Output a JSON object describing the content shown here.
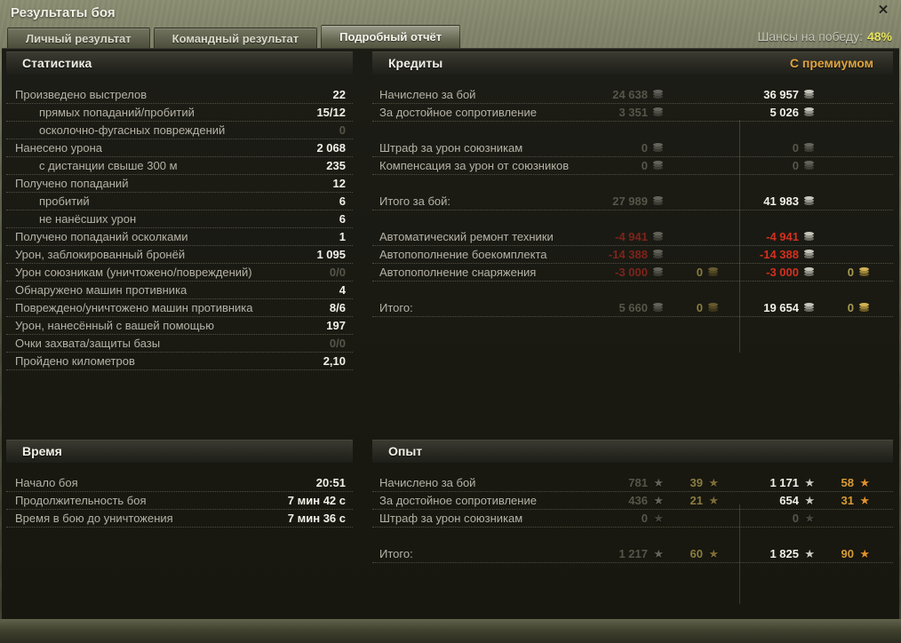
{
  "window": {
    "title": "Результаты боя",
    "win_chance_label": "Шансы на победу:",
    "win_chance_value": "48%"
  },
  "icons": {
    "close": "✕",
    "star": "★",
    "credits": "coin-stack-silver",
    "gold": "coin-stack-gold"
  },
  "tabs": [
    {
      "label": "Личный результат",
      "active": false
    },
    {
      "label": "Командный результат",
      "active": false
    },
    {
      "label": "Подробный отчёт",
      "active": true
    }
  ],
  "stats": {
    "title": "Статистика",
    "rows": [
      {
        "label": "Произведено выстрелов",
        "value": "22"
      },
      {
        "label": "прямых попаданий/пробитий",
        "value": "15/12"
      },
      {
        "label": "осколочно-фугасных повреждений",
        "value": "0"
      },
      {
        "label": "Нанесено урона",
        "value": "2 068"
      },
      {
        "label": "с дистанции свыше 300 м",
        "value": "235"
      },
      {
        "label": "Получено попаданий",
        "value": "12"
      },
      {
        "label": "пробитий",
        "value": "6"
      },
      {
        "label": "не нанёсших урон",
        "value": "6"
      },
      {
        "label": "Получено попаданий осколками",
        "value": "1"
      },
      {
        "label": "Урон, заблокированный бронёй",
        "value": "1 095"
      },
      {
        "label": "Урон союзникам (уничтожено/повреждений)",
        "value": "0/0"
      },
      {
        "label": "Обнаружено машин противника",
        "value": "4"
      },
      {
        "label": "Повреждено/уничтожено машин противника",
        "value": "8/6"
      },
      {
        "label": "Урон, нанесённый с вашей помощью",
        "value": "197"
      },
      {
        "label": "Очки захвата/защиты базы",
        "value": "0/0"
      },
      {
        "label": "Пройдено километров",
        "value": "2,10"
      }
    ]
  },
  "credits": {
    "title": "Кредиты",
    "premium_label": "С премиумом",
    "rows": [
      {
        "label": "Начислено за бой",
        "base": "24 638",
        "prem": "36 957"
      },
      {
        "label": "За достойное сопротивление",
        "base": "3 351",
        "prem": "5 026"
      },
      {
        "label": "Штраф за урон союзникам",
        "base": "0",
        "prem": "0"
      },
      {
        "label": "Компенсация за урон от союзников",
        "base": "0",
        "prem": "0"
      },
      {
        "label": "Итого за бой:",
        "base": "27 989",
        "prem": "41 983"
      },
      {
        "label": "Автоматический ремонт техники",
        "base": "-4 941",
        "prem": "-4 941"
      },
      {
        "label": "Автопополнение боекомплекта",
        "base": "-14 388",
        "prem": "-14 388"
      },
      {
        "label": "Автопополнение снаряжения",
        "base": "-3 000",
        "base_gold": "0",
        "prem": "-3 000",
        "prem_gold": "0"
      },
      {
        "label": "Итого:",
        "base": "5 660",
        "base_gold": "0",
        "prem": "19 654",
        "prem_gold": "0"
      }
    ]
  },
  "time": {
    "title": "Время",
    "rows": [
      {
        "label": "Начало боя",
        "value": "20:51"
      },
      {
        "label": "Продолжительность боя",
        "value": "7 мин 42 с"
      },
      {
        "label": "Время в бою до уничтожения",
        "value": "7 мин 36 с"
      }
    ]
  },
  "xp": {
    "title": "Опыт",
    "rows": [
      {
        "label": "Начислено за бой",
        "base": "781",
        "base_free": "39",
        "prem": "1 171",
        "prem_free": "58"
      },
      {
        "label": "За достойное сопротивление",
        "base": "436",
        "base_free": "21",
        "prem": "654",
        "prem_free": "31"
      },
      {
        "label": "Штраф за урон союзникам",
        "base": "0",
        "prem": "0"
      },
      {
        "label": "Итого:",
        "base": "1 217",
        "base_free": "60",
        "prem": "1 825",
        "prem_free": "90"
      }
    ]
  }
}
